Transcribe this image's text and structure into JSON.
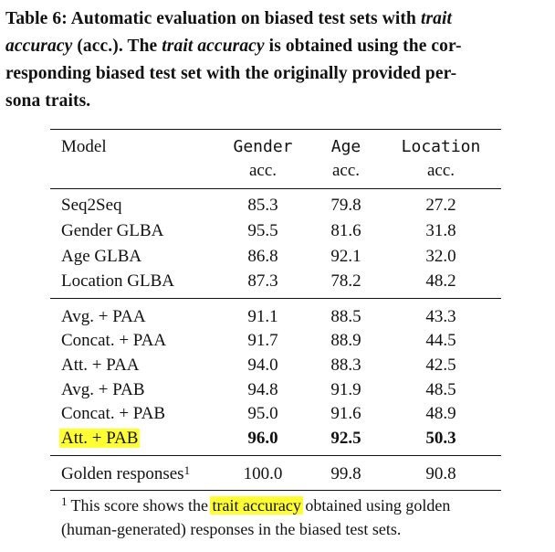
{
  "caption": {
    "prefix": "Table 6: Automatic evaluation on biased test sets with",
    "trait1": "trait",
    "accuracy1": "accuracy",
    "mid": "(acc.). The",
    "trait_accuracy": "trait accuracy",
    "suffix_line2": "is obtained using the cor-",
    "line3": "responding biased test set with the originally provided per-",
    "line4": "sona traits."
  },
  "header": {
    "model": "Model",
    "gender": "Gender",
    "age": "Age",
    "location": "Location",
    "acc": "acc."
  },
  "rows": [
    {
      "model": "Seq2Seq",
      "gender": "85.3",
      "age": "79.8",
      "location": "27.2"
    },
    {
      "model": "Gender GLBA",
      "gender": "95.5",
      "age": "81.6",
      "location": "31.8"
    },
    {
      "model": "Age GLBA",
      "gender": "86.8",
      "age": "92.1",
      "location": "32.0"
    },
    {
      "model": "Location GLBA",
      "gender": "87.3",
      "age": "78.2",
      "location": "48.2"
    },
    {
      "model": "Avg. + PAA",
      "gender": "91.1",
      "age": "88.5",
      "location": "43.3"
    },
    {
      "model": "Concat. + PAA",
      "gender": "91.7",
      "age": "88.9",
      "location": "44.5"
    },
    {
      "model": "Att. + PAA",
      "gender": "94.0",
      "age": "88.3",
      "location": "42.5"
    },
    {
      "model": "Avg. + PAB",
      "gender": "94.8",
      "age": "91.9",
      "location": "48.5"
    },
    {
      "model": "Concat. + PAB",
      "gender": "95.0",
      "age": "91.6",
      "location": "48.9"
    },
    {
      "model": "Att. + PAB",
      "gender": "96.0",
      "age": "92.5",
      "location": "50.3"
    }
  ],
  "golden": {
    "model": "Golden responses",
    "sup": "1",
    "gender": "100.0",
    "age": "99.8",
    "location": "90.8"
  },
  "footnote": {
    "mark": "1",
    "pre": "This score shows the",
    "highlight": "trait accuracy",
    "post": "obtained using golden",
    "line2": "(human-generated) responses in the biased test sets."
  },
  "highlight_color": "#ffff33"
}
